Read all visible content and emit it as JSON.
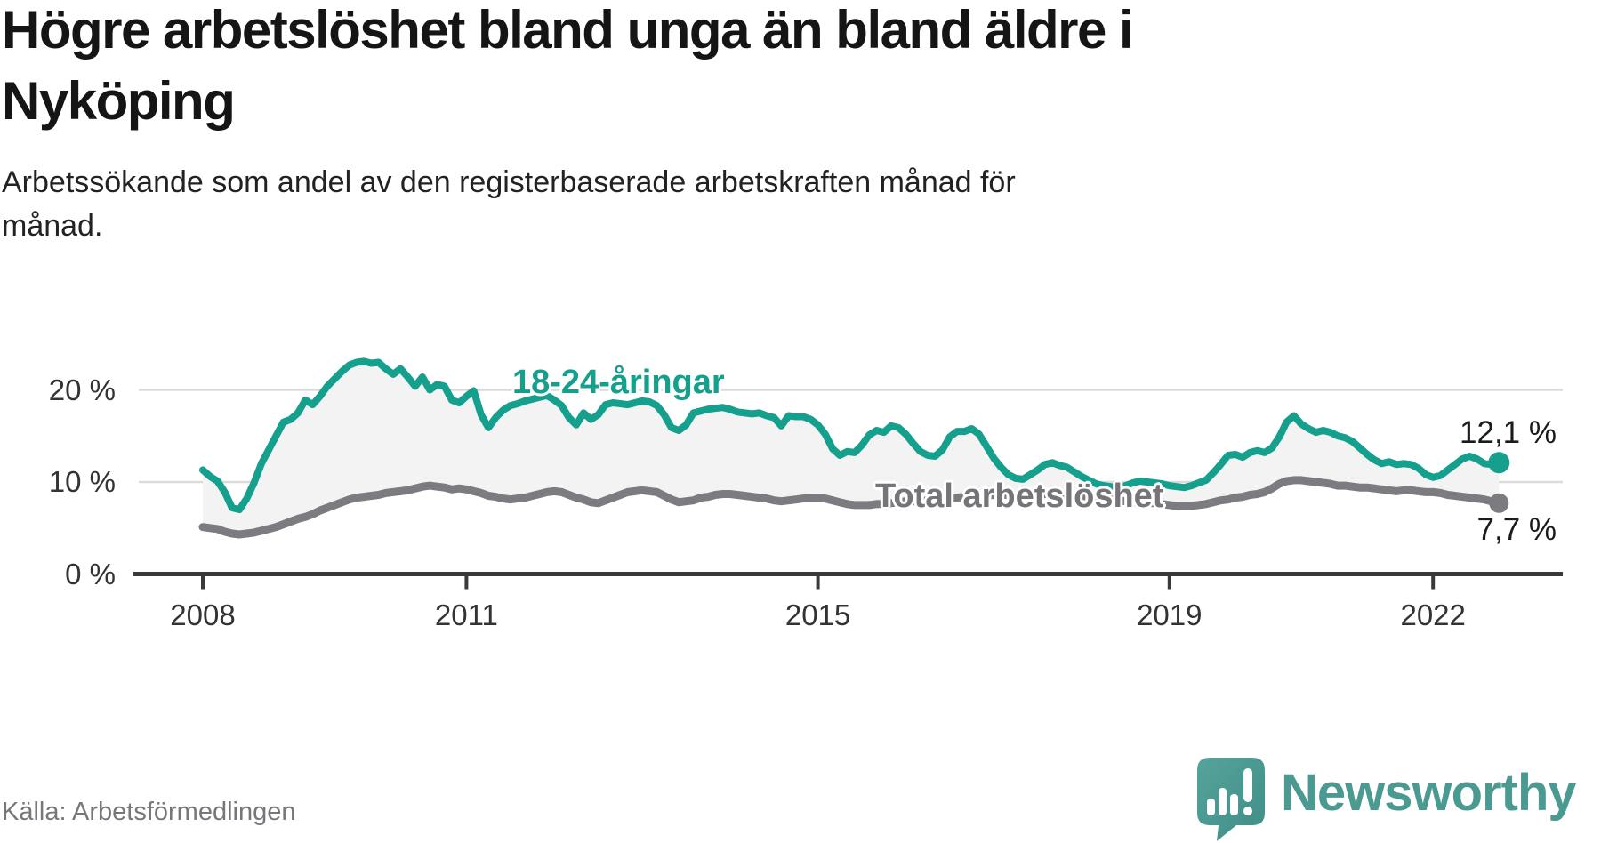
{
  "header": {
    "title": "Högre arbetslöshet bland unga än bland äldre i\nNyköping",
    "subtitle": "Arbetssökande som andel av den registerbaserade arbetskraften månad för\nmånad."
  },
  "footer": {
    "source": "Källa: Arbetsförmedlingen"
  },
  "branding": {
    "logo_text": "Newsworthy",
    "logo_icon": "newsworthy-speech-bubble-bar-chart-icon"
  },
  "colors": {
    "youth_line": "#14A08D",
    "total_line": "#7C7C80",
    "total_label": "#757579",
    "fill_between": "#F3F3F3",
    "grid": "#DBDBDB",
    "axis": "#3A3A3A",
    "tick_text": "#333333",
    "value_text": "#1B1B1B",
    "logo_teal": "#4A9A92"
  },
  "chart_data": {
    "type": "line",
    "frequency": "monthly",
    "x_start": "2008-01",
    "x_end": "2022-10",
    "x_tick_years": [
      2008,
      2011,
      2015,
      2019,
      2022
    ],
    "y_axis": [
      {
        "value": 0,
        "label": "0 %"
      },
      {
        "value": 10,
        "label": "10 %"
      },
      {
        "value": 20,
        "label": "20 %"
      }
    ],
    "ylim": [
      0,
      30
    ],
    "grid": "horizontal",
    "fill_between_series": true,
    "series": [
      {
        "name": "18-24-åringar",
        "end_label": "12,1 %",
        "end_value": 12.1,
        "values": [
          11.3,
          10.6,
          10.1,
          8.9,
          7.2,
          7.0,
          8.2,
          9.9,
          12.0,
          13.5,
          15.0,
          16.5,
          16.8,
          17.5,
          18.9,
          18.4,
          19.3,
          20.4,
          21.2,
          22.0,
          22.7,
          23.0,
          23.1,
          22.9,
          23.0,
          22.3,
          21.7,
          22.3,
          21.4,
          20.4,
          21.4,
          20.0,
          20.6,
          20.4,
          18.9,
          18.6,
          19.3,
          19.9,
          17.3,
          15.9,
          17.0,
          17.8,
          18.3,
          18.5,
          18.8,
          19.0,
          19.2,
          19.4,
          18.9,
          18.3,
          17.0,
          16.2,
          17.5,
          16.8,
          17.3,
          18.4,
          18.6,
          18.5,
          18.4,
          18.6,
          18.8,
          18.7,
          18.3,
          17.3,
          15.9,
          15.6,
          16.2,
          17.5,
          17.7,
          17.9,
          18.0,
          18.1,
          17.9,
          17.6,
          17.5,
          17.4,
          17.5,
          17.2,
          17.0,
          16.1,
          17.2,
          17.1,
          17.1,
          16.8,
          16.2,
          15.2,
          13.6,
          12.9,
          13.3,
          13.2,
          14.0,
          15.1,
          15.6,
          15.4,
          16.1,
          15.9,
          15.2,
          14.2,
          13.3,
          12.9,
          12.8,
          13.5,
          14.9,
          15.5,
          15.5,
          15.8,
          15.2,
          13.9,
          12.6,
          11.6,
          10.8,
          10.4,
          10.3,
          10.8,
          11.3,
          11.9,
          12.1,
          11.8,
          11.6,
          11.1,
          10.6,
          10.2,
          9.8,
          9.6,
          9.5,
          9.4,
          9.6,
          9.9,
          10.1,
          10.0,
          9.9,
          9.8,
          9.6,
          9.5,
          9.4,
          9.6,
          9.9,
          10.2,
          11.0,
          11.9,
          12.9,
          13.0,
          12.7,
          13.2,
          13.4,
          13.2,
          13.7,
          14.9,
          16.5,
          17.2,
          16.3,
          15.8,
          15.4,
          15.6,
          15.4,
          15.0,
          14.8,
          14.4,
          13.7,
          13.0,
          12.4,
          12.0,
          12.2,
          11.9,
          12.0,
          11.9,
          11.5,
          10.8,
          10.5,
          10.7,
          11.3,
          11.9,
          12.5,
          12.8,
          12.5,
          12.0,
          11.9,
          12.1
        ]
      },
      {
        "name": "Total arbetslöshet",
        "end_label": "7,7 %",
        "end_value": 7.7,
        "values": [
          5.1,
          5.0,
          4.9,
          4.6,
          4.4,
          4.3,
          4.4,
          4.5,
          4.7,
          4.9,
          5.1,
          5.4,
          5.7,
          6.0,
          6.2,
          6.5,
          6.9,
          7.2,
          7.5,
          7.8,
          8.1,
          8.3,
          8.4,
          8.5,
          8.6,
          8.8,
          8.9,
          9.0,
          9.1,
          9.3,
          9.5,
          9.6,
          9.5,
          9.4,
          9.2,
          9.3,
          9.2,
          9.0,
          8.8,
          8.5,
          8.4,
          8.2,
          8.1,
          8.2,
          8.3,
          8.5,
          8.7,
          8.9,
          9.0,
          8.9,
          8.6,
          8.3,
          8.1,
          7.8,
          7.7,
          8.0,
          8.3,
          8.6,
          8.9,
          9.0,
          9.1,
          9.0,
          8.9,
          8.5,
          8.1,
          7.8,
          7.9,
          8.0,
          8.3,
          8.4,
          8.6,
          8.7,
          8.7,
          8.6,
          8.5,
          8.4,
          8.3,
          8.2,
          8.0,
          7.9,
          8.0,
          8.1,
          8.2,
          8.3,
          8.3,
          8.2,
          8.0,
          7.8,
          7.6,
          7.5,
          7.5,
          7.5,
          7.6,
          7.6,
          7.7,
          7.8,
          7.9,
          7.9,
          7.9,
          8.0,
          8.0,
          8.1,
          8.2,
          8.3,
          8.4,
          8.4,
          8.5,
          8.5,
          8.6,
          8.6,
          8.6,
          8.5,
          8.5,
          8.6,
          8.6,
          8.7,
          8.7,
          8.6,
          8.6,
          8.5,
          8.5,
          8.4,
          8.3,
          8.2,
          8.1,
          8.0,
          7.9,
          7.8,
          7.8,
          7.7,
          7.7,
          7.6,
          7.5,
          7.4,
          7.4,
          7.4,
          7.5,
          7.6,
          7.8,
          8.0,
          8.1,
          8.3,
          8.4,
          8.6,
          8.7,
          8.9,
          9.3,
          9.8,
          10.1,
          10.2,
          10.2,
          10.1,
          10.0,
          9.9,
          9.8,
          9.6,
          9.6,
          9.5,
          9.4,
          9.4,
          9.3,
          9.2,
          9.1,
          9.0,
          9.1,
          9.1,
          9.0,
          8.9,
          8.9,
          8.8,
          8.6,
          8.5,
          8.4,
          8.3,
          8.2,
          8.1,
          7.9,
          7.7
        ]
      }
    ]
  }
}
